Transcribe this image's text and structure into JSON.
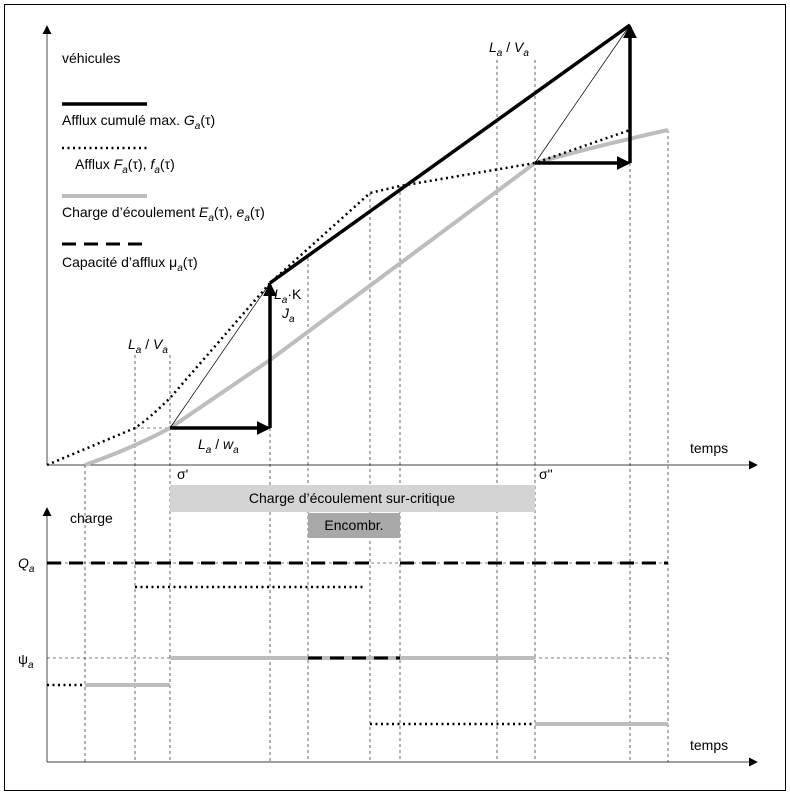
{
  "y_axis_label": "véhicules",
  "legend": [
    [
      "Afflux cumulé max. ",
      "G",
      "a",
      "(τ)"
    ],
    [
      "Afflux ",
      "F",
      "a",
      "(τ), ",
      "f",
      "a",
      "(τ)"
    ],
    [
      "Charge d’écoulement ",
      "E",
      "a",
      "(τ), ",
      "e",
      "a",
      "(τ)"
    ],
    [
      "Capacité d’afflux μ",
      "a",
      "(τ)"
    ]
  ],
  "annotations": {
    "la_va_left": [
      "L",
      "a",
      " / ",
      "V",
      "a"
    ],
    "la_va_right": [
      "L",
      "a",
      " / ",
      "V",
      "a"
    ],
    "la_k": [
      "L",
      "a",
      "·K"
    ],
    "ja": [
      "J",
      "a"
    ],
    "la_wa": [
      "L",
      "a",
      " / ",
      "w",
      "a"
    ]
  },
  "x_axis_label": "temps",
  "sigma_1": "σ'",
  "sigma_2": "σ\"",
  "supercritical_band": "Charge d’écoulement sur-critique",
  "congestion_band": "Encombr.",
  "lower": {
    "y_axis_label": "charge",
    "q": [
      "Q",
      "a"
    ],
    "psi": [
      "ψ",
      "a"
    ],
    "x_axis_label": "temps"
  }
}
